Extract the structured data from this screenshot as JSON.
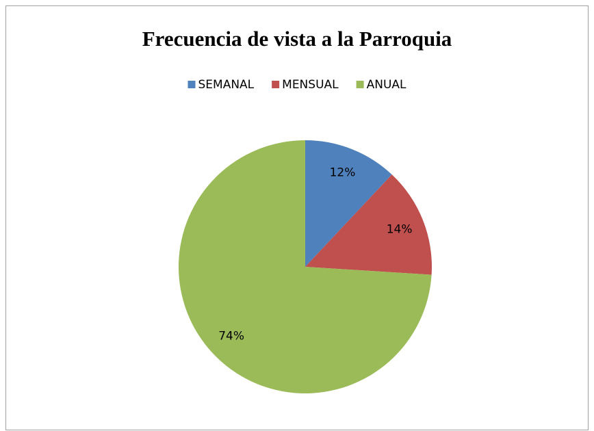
{
  "chart_data": {
    "type": "pie",
    "title": "Frecuencia de vista a la Parroquia",
    "categories": [
      "SEMANAL",
      "MENSUAL",
      "ANUAL"
    ],
    "values": [
      12,
      14,
      74
    ],
    "value_labels": [
      "12%",
      "14%",
      "74%"
    ],
    "colors": [
      "#4f81bd",
      "#c0504d",
      "#9bbb59"
    ],
    "legend": "top"
  }
}
